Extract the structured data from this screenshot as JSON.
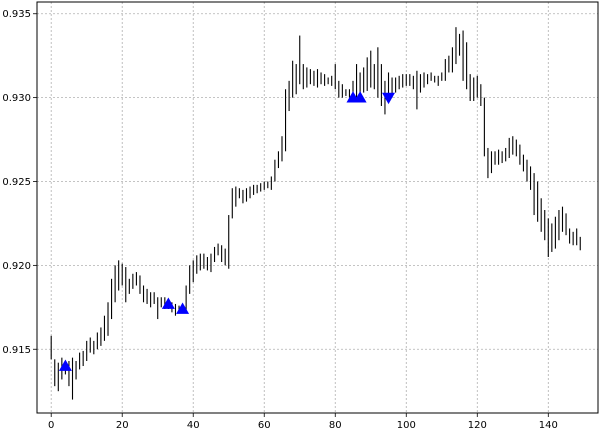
{
  "chart_data": {
    "type": "scatter",
    "title": "",
    "xlabel": "",
    "ylabel": "",
    "xlim": [
      -4,
      154
    ],
    "ylim": [
      0.9112,
      0.9357
    ],
    "grid": true,
    "x_ticks": [
      0,
      20,
      40,
      60,
      80,
      100,
      120,
      140
    ],
    "x_tick_labels": [
      "0",
      "20",
      "40",
      "60",
      "80",
      "100",
      "120",
      "140"
    ],
    "y_ticks": [
      0.915,
      0.92,
      0.925,
      0.93,
      0.935
    ],
    "y_tick_labels": [
      "0.915",
      "0.920",
      "0.925",
      "0.930",
      "0.935"
    ],
    "colors": {
      "bars": "#000000",
      "markers": "#0000ff",
      "grid": "#b0b0b0"
    },
    "bars": [
      {
        "x": 0,
        "low": 0.9144,
        "high": 0.9158
      },
      {
        "x": 1,
        "low": 0.9128,
        "high": 0.9144
      },
      {
        "x": 2,
        "low": 0.9125,
        "high": 0.9142
      },
      {
        "x": 3,
        "low": 0.9132,
        "high": 0.9145
      },
      {
        "x": 4,
        "low": 0.9135,
        "high": 0.914
      },
      {
        "x": 5,
        "low": 0.9128,
        "high": 0.9143
      },
      {
        "x": 6,
        "low": 0.912,
        "high": 0.9145
      },
      {
        "x": 7,
        "low": 0.9132,
        "high": 0.9143
      },
      {
        "x": 8,
        "low": 0.9138,
        "high": 0.9148
      },
      {
        "x": 9,
        "low": 0.914,
        "high": 0.9149
      },
      {
        "x": 10,
        "low": 0.9143,
        "high": 0.9155
      },
      {
        "x": 11,
        "low": 0.9148,
        "high": 0.9157
      },
      {
        "x": 12,
        "low": 0.9147,
        "high": 0.9155
      },
      {
        "x": 13,
        "low": 0.915,
        "high": 0.916
      },
      {
        "x": 14,
        "low": 0.9152,
        "high": 0.9163
      },
      {
        "x": 15,
        "low": 0.9155,
        "high": 0.917
      },
      {
        "x": 16,
        "low": 0.9158,
        "high": 0.9178
      },
      {
        "x": 17,
        "low": 0.9168,
        "high": 0.9192
      },
      {
        "x": 18,
        "low": 0.9178,
        "high": 0.92
      },
      {
        "x": 19,
        "low": 0.9185,
        "high": 0.9203
      },
      {
        "x": 20,
        "low": 0.9188,
        "high": 0.9201
      },
      {
        "x": 21,
        "low": 0.9178,
        "high": 0.9199
      },
      {
        "x": 22,
        "low": 0.9183,
        "high": 0.9192
      },
      {
        "x": 23,
        "low": 0.9186,
        "high": 0.9195
      },
      {
        "x": 24,
        "low": 0.9188,
        "high": 0.9196
      },
      {
        "x": 25,
        "low": 0.9183,
        "high": 0.9194
      },
      {
        "x": 26,
        "low": 0.9178,
        "high": 0.9188
      },
      {
        "x": 27,
        "low": 0.9177,
        "high": 0.9186
      },
      {
        "x": 28,
        "low": 0.9175,
        "high": 0.9184
      },
      {
        "x": 29,
        "low": 0.9177,
        "high": 0.9184
      },
      {
        "x": 30,
        "low": 0.9168,
        "high": 0.9181
      },
      {
        "x": 31,
        "low": 0.9175,
        "high": 0.9181
      },
      {
        "x": 32,
        "low": 0.9174,
        "high": 0.9181
      },
      {
        "x": 33,
        "low": 0.9174,
        "high": 0.918
      },
      {
        "x": 34,
        "low": 0.9172,
        "high": 0.9178
      },
      {
        "x": 35,
        "low": 0.917,
        "high": 0.9177
      },
      {
        "x": 36,
        "low": 0.9172,
        "high": 0.9176
      },
      {
        "x": 37,
        "low": 0.9172,
        "high": 0.9176
      },
      {
        "x": 38,
        "low": 0.9172,
        "high": 0.9188
      },
      {
        "x": 39,
        "low": 0.9183,
        "high": 0.92
      },
      {
        "x": 40,
        "low": 0.919,
        "high": 0.9203
      },
      {
        "x": 41,
        "low": 0.9195,
        "high": 0.9206
      },
      {
        "x": 42,
        "low": 0.9197,
        "high": 0.9207
      },
      {
        "x": 43,
        "low": 0.9198,
        "high": 0.9207
      },
      {
        "x": 44,
        "low": 0.9197,
        "high": 0.9205
      },
      {
        "x": 45,
        "low": 0.9196,
        "high": 0.9207
      },
      {
        "x": 46,
        "low": 0.9202,
        "high": 0.9211
      },
      {
        "x": 47,
        "low": 0.9206,
        "high": 0.9213
      },
      {
        "x": 48,
        "low": 0.9202,
        "high": 0.9212
      },
      {
        "x": 49,
        "low": 0.92,
        "high": 0.921
      },
      {
        "x": 50,
        "low": 0.9198,
        "high": 0.923
      },
      {
        "x": 51,
        "low": 0.9228,
        "high": 0.9246
      },
      {
        "x": 52,
        "low": 0.9235,
        "high": 0.9247
      },
      {
        "x": 53,
        "low": 0.924,
        "high": 0.9246
      },
      {
        "x": 54,
        "low": 0.9237,
        "high": 0.9245
      },
      {
        "x": 55,
        "low": 0.9238,
        "high": 0.9246
      },
      {
        "x": 56,
        "low": 0.924,
        "high": 0.9247
      },
      {
        "x": 57,
        "low": 0.9242,
        "high": 0.9248
      },
      {
        "x": 58,
        "low": 0.9243,
        "high": 0.9248
      },
      {
        "x": 59,
        "low": 0.9244,
        "high": 0.9249
      },
      {
        "x": 60,
        "low": 0.9245,
        "high": 0.925
      },
      {
        "x": 61,
        "low": 0.9246,
        "high": 0.925
      },
      {
        "x": 62,
        "low": 0.9245,
        "high": 0.9253
      },
      {
        "x": 63,
        "low": 0.925,
        "high": 0.9263
      },
      {
        "x": 64,
        "low": 0.9258,
        "high": 0.9268
      },
      {
        "x": 65,
        "low": 0.9262,
        "high": 0.9277
      },
      {
        "x": 66,
        "low": 0.9268,
        "high": 0.9305
      },
      {
        "x": 67,
        "low": 0.9292,
        "high": 0.931
      },
      {
        "x": 68,
        "low": 0.93,
        "high": 0.9322
      },
      {
        "x": 69,
        "low": 0.9302,
        "high": 0.932
      },
      {
        "x": 70,
        "low": 0.9308,
        "high": 0.9337
      },
      {
        "x": 71,
        "low": 0.9305,
        "high": 0.932
      },
      {
        "x": 72,
        "low": 0.9306,
        "high": 0.9318
      },
      {
        "x": 73,
        "low": 0.9308,
        "high": 0.9317
      },
      {
        "x": 74,
        "low": 0.9307,
        "high": 0.9316
      },
      {
        "x": 75,
        "low": 0.9306,
        "high": 0.9317
      },
      {
        "x": 76,
        "low": 0.9308,
        "high": 0.9315
      },
      {
        "x": 77,
        "low": 0.9307,
        "high": 0.9314
      },
      {
        "x": 78,
        "low": 0.9308,
        "high": 0.9312
      },
      {
        "x": 79,
        "low": 0.9307,
        "high": 0.9313
      },
      {
        "x": 80,
        "low": 0.9305,
        "high": 0.932
      },
      {
        "x": 81,
        "low": 0.93,
        "high": 0.931
      },
      {
        "x": 82,
        "low": 0.93,
        "high": 0.9308
      },
      {
        "x": 83,
        "low": 0.9301,
        "high": 0.9305
      },
      {
        "x": 84,
        "low": 0.93,
        "high": 0.9305
      },
      {
        "x": 85,
        "low": 0.93,
        "high": 0.931
      },
      {
        "x": 86,
        "low": 0.93,
        "high": 0.932
      },
      {
        "x": 87,
        "low": 0.93,
        "high": 0.9315
      },
      {
        "x": 88,
        "low": 0.9303,
        "high": 0.9318
      },
      {
        "x": 89,
        "low": 0.9304,
        "high": 0.9324
      },
      {
        "x": 90,
        "low": 0.9306,
        "high": 0.9328
      },
      {
        "x": 91,
        "low": 0.9305,
        "high": 0.932
      },
      {
        "x": 92,
        "low": 0.93,
        "high": 0.933
      },
      {
        "x": 93,
        "low": 0.9295,
        "high": 0.932
      },
      {
        "x": 94,
        "low": 0.929,
        "high": 0.931
      },
      {
        "x": 95,
        "low": 0.9297,
        "high": 0.9315
      },
      {
        "x": 96,
        "low": 0.93,
        "high": 0.9312
      },
      {
        "x": 97,
        "low": 0.9303,
        "high": 0.9312
      },
      {
        "x": 98,
        "low": 0.9305,
        "high": 0.9313
      },
      {
        "x": 99,
        "low": 0.9306,
        "high": 0.9314
      },
      {
        "x": 100,
        "low": 0.9307,
        "high": 0.9314
      },
      {
        "x": 101,
        "low": 0.9307,
        "high": 0.9314
      },
      {
        "x": 102,
        "low": 0.9305,
        "high": 0.9313
      },
      {
        "x": 103,
        "low": 0.9293,
        "high": 0.9316
      },
      {
        "x": 104,
        "low": 0.9303,
        "high": 0.9314
      },
      {
        "x": 105,
        "low": 0.9306,
        "high": 0.9315
      },
      {
        "x": 106,
        "low": 0.9308,
        "high": 0.9314
      },
      {
        "x": 107,
        "low": 0.931,
        "high": 0.9315
      },
      {
        "x": 108,
        "low": 0.9309,
        "high": 0.9313
      },
      {
        "x": 109,
        "low": 0.9307,
        "high": 0.9313
      },
      {
        "x": 110,
        "low": 0.931,
        "high": 0.9315
      },
      {
        "x": 111,
        "low": 0.931,
        "high": 0.9323
      },
      {
        "x": 112,
        "low": 0.9315,
        "high": 0.9325
      },
      {
        "x": 113,
        "low": 0.9315,
        "high": 0.933
      },
      {
        "x": 114,
        "low": 0.932,
        "high": 0.9342
      },
      {
        "x": 115,
        "low": 0.9325,
        "high": 0.9338
      },
      {
        "x": 116,
        "low": 0.931,
        "high": 0.934
      },
      {
        "x": 117,
        "low": 0.9305,
        "high": 0.9333
      },
      {
        "x": 118,
        "low": 0.9298,
        "high": 0.9314
      },
      {
        "x": 119,
        "low": 0.9298,
        "high": 0.9312
      },
      {
        "x": 120,
        "low": 0.93,
        "high": 0.9313
      },
      {
        "x": 121,
        "low": 0.9295,
        "high": 0.9308
      },
      {
        "x": 122,
        "low": 0.9265,
        "high": 0.93
      },
      {
        "x": 123,
        "low": 0.9252,
        "high": 0.927
      },
      {
        "x": 124,
        "low": 0.9255,
        "high": 0.9268
      },
      {
        "x": 125,
        "low": 0.926,
        "high": 0.9268
      },
      {
        "x": 126,
        "low": 0.926,
        "high": 0.9269
      },
      {
        "x": 127,
        "low": 0.9261,
        "high": 0.9268
      },
      {
        "x": 128,
        "low": 0.9262,
        "high": 0.927
      },
      {
        "x": 129,
        "low": 0.9264,
        "high": 0.9276
      },
      {
        "x": 130,
        "low": 0.9266,
        "high": 0.9277
      },
      {
        "x": 131,
        "low": 0.9265,
        "high": 0.9275
      },
      {
        "x": 132,
        "low": 0.926,
        "high": 0.9272
      },
      {
        "x": 133,
        "low": 0.9256,
        "high": 0.9266
      },
      {
        "x": 134,
        "low": 0.925,
        "high": 0.9263
      },
      {
        "x": 135,
        "low": 0.9245,
        "high": 0.9259
      },
      {
        "x": 136,
        "low": 0.923,
        "high": 0.9255
      },
      {
        "x": 137,
        "low": 0.9226,
        "high": 0.925
      },
      {
        "x": 138,
        "low": 0.922,
        "high": 0.924
      },
      {
        "x": 139,
        "low": 0.9215,
        "high": 0.9233
      },
      {
        "x": 140,
        "low": 0.9205,
        "high": 0.9228
      },
      {
        "x": 141,
        "low": 0.9208,
        "high": 0.9225
      },
      {
        "x": 142,
        "low": 0.921,
        "high": 0.9229
      },
      {
        "x": 143,
        "low": 0.9215,
        "high": 0.9233
      },
      {
        "x": 144,
        "low": 0.922,
        "high": 0.9235
      },
      {
        "x": 145,
        "low": 0.9218,
        "high": 0.9231
      },
      {
        "x": 146,
        "low": 0.9213,
        "high": 0.9222
      },
      {
        "x": 147,
        "low": 0.9212,
        "high": 0.922
      },
      {
        "x": 148,
        "low": 0.9212,
        "high": 0.9222
      },
      {
        "x": 149,
        "low": 0.9209,
        "high": 0.9217
      }
    ],
    "buy_markers": [
      {
        "x": 4,
        "y": 0.914
      },
      {
        "x": 33,
        "y": 0.9177
      },
      {
        "x": 37,
        "y": 0.9174
      },
      {
        "x": 85,
        "y": 0.93
      },
      {
        "x": 87,
        "y": 0.93
      }
    ],
    "sell_markers": [
      {
        "x": 95,
        "y": 0.93
      }
    ]
  }
}
